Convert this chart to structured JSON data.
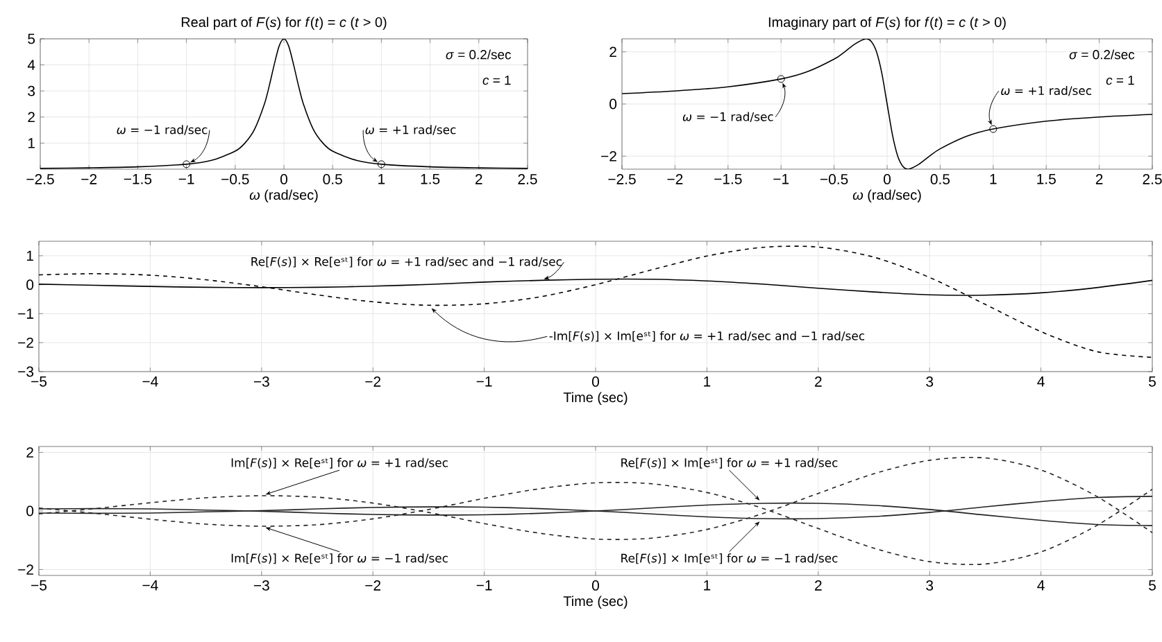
{
  "chart_data": [
    {
      "type": "line",
      "title": "Real part of *F*(*s*) for *f*(*t*) = *c*   (*t* > 0)",
      "xlabel": "*ω* (rad/sec)",
      "xlim": [
        -2.5,
        2.5
      ],
      "ylim": [
        0,
        5
      ],
      "grid": true,
      "xticks": [
        {
          "value": -2.5,
          "label": "−2.5"
        },
        {
          "value": -2,
          "label": "−2"
        },
        {
          "value": -1.5,
          "label": "−1.5"
        },
        {
          "value": -1,
          "label": "−1"
        },
        {
          "value": -0.5,
          "label": "−0.5"
        },
        0,
        0.5,
        1,
        1.5,
        2,
        2.5
      ],
      "yticks": [
        1,
        2,
        3,
        4,
        5
      ],
      "annotations": [
        "*σ* = 0.2/sec",
        "*c* = 1",
        {
          "text": "*ω* = −1 rad/sec",
          "x": -1,
          "y": 0.19
        },
        {
          "text": "*ω* = +1 rad/sec",
          "x": 1,
          "y": 0.19
        }
      ],
      "series": [
        {
          "color": "#000000",
          "x": [
            -2.5,
            -2,
            -1.5,
            -1,
            -0.75,
            -0.5,
            -0.4,
            -0.3,
            -0.2,
            -0.15,
            -0.1,
            -0.05,
            0,
            0.05,
            0.1,
            0.15,
            0.2,
            0.3,
            0.4,
            0.5,
            0.75,
            1,
            1.5,
            2,
            2.5
          ],
          "values": [
            0.03,
            0.05,
            0.09,
            0.19,
            0.33,
            0.69,
            1,
            1.54,
            2.5,
            3.2,
            4,
            4.71,
            5,
            4.71,
            4,
            3.2,
            2.5,
            1.54,
            1,
            0.69,
            0.33,
            0.19,
            0.09,
            0.05,
            0.03
          ]
        },
        {
          "type": "scatter",
          "marker": "circle",
          "color": "#000000",
          "x": [
            -1,
            1
          ],
          "values": [
            0.19,
            0.19
          ]
        }
      ]
    },
    {
      "type": "line",
      "title": "Imaginary part of *F*(*s*) for *f*(*t*) = *c*   (*t* > 0)",
      "xlabel": "*ω* (rad/sec)",
      "xlim": [
        -2.5,
        2.5
      ],
      "ylim": [
        -2.5,
        2.5
      ],
      "grid": true,
      "xticks": [
        {
          "value": -2.5,
          "label": "−2.5"
        },
        {
          "value": -2,
          "label": "−2"
        },
        {
          "value": -1.5,
          "label": "−1.5"
        },
        {
          "value": -1,
          "label": "−1"
        },
        {
          "value": -0.5,
          "label": "−0.5"
        },
        0,
        0.5,
        1,
        1.5,
        2,
        2.5
      ],
      "yticks": [
        {
          "value": -2,
          "label": "−2"
        },
        0,
        2
      ],
      "annotations": [
        "*σ* = 0.2/sec",
        "*c* = 1",
        {
          "text": "*ω* = −1 rad/sec",
          "x": -1,
          "y": 0.96
        },
        {
          "text": "*ω* = +1 rad/sec",
          "x": 1,
          "y": -0.96
        }
      ],
      "series": [
        {
          "color": "#000000",
          "x": [
            -2.5,
            -2,
            -1.5,
            -1,
            -0.75,
            -0.5,
            -0.4,
            -0.3,
            -0.2,
            -0.15,
            -0.1,
            -0.05,
            0,
            0.05,
            0.1,
            0.15,
            0.2,
            0.3,
            0.4,
            0.5,
            0.75,
            1,
            1.5,
            2,
            2.5
          ],
          "values": [
            0.4,
            0.5,
            0.66,
            0.96,
            1.24,
            1.72,
            2,
            2.31,
            2.5,
            2.4,
            2,
            1.18,
            0,
            -1.18,
            -2,
            -2.4,
            -2.5,
            -2.31,
            -2,
            -1.72,
            -1.24,
            -0.96,
            -0.66,
            -0.5,
            -0.4
          ]
        },
        {
          "type": "scatter",
          "marker": "circle",
          "color": "#000000",
          "x": [
            -1,
            1
          ],
          "values": [
            0.96,
            -0.96
          ]
        }
      ]
    },
    {
      "type": "line",
      "xlabel": "Time (sec)",
      "xlim": [
        -5,
        5
      ],
      "ylim": [
        -3,
        1.5
      ],
      "grid": true,
      "xticks": [
        {
          "value": -5,
          "label": "−5"
        },
        {
          "value": -4,
          "label": "−4"
        },
        {
          "value": -3,
          "label": "−3"
        },
        {
          "value": -2,
          "label": "−2"
        },
        {
          "value": -1,
          "label": "−1"
        },
        0,
        1,
        2,
        3,
        4,
        5
      ],
      "yticks": [
        {
          "value": -3,
          "label": "−3"
        },
        {
          "value": -2,
          "label": "−2"
        },
        {
          "value": -1,
          "label": "−1"
        },
        0,
        1
      ],
      "annotations": [
        {
          "text": "Re[*F*(*s*)] × Re[eˢᵗ] for *ω* = +1 rad/sec and −1 rad/sec",
          "x": -0.5,
          "y": 0.15
        },
        {
          "text": "-Im[*F*(*s*)] × Im[eˢᵗ] for *ω* = +1 rad/sec and −1 rad/sec",
          "x": -1.5,
          "y": -0.71
        }
      ],
      "x": [
        -5,
        -4.5,
        -4,
        -3.5,
        -3,
        -2.5,
        -2,
        -1.5,
        -1,
        -0.5,
        0,
        0.5,
        1,
        1.5,
        2,
        2.5,
        3,
        3.5,
        4,
        4.5,
        5
      ],
      "series": [
        {
          "color": "#000000",
          "line_style": "solid",
          "values": [
            0.02,
            -0.02,
            -0.06,
            -0.09,
            -0.1,
            -0.09,
            -0.05,
            0.01,
            0.09,
            0.15,
            0.19,
            0.19,
            0.13,
            0.02,
            -0.12,
            -0.25,
            -0.35,
            -0.36,
            -0.28,
            -0.1,
            0.15
          ]
        },
        {
          "color": "#000000",
          "line_style": "dashed",
          "values": [
            0.34,
            0.38,
            0.33,
            0.17,
            -0.07,
            -0.35,
            -0.59,
            -0.71,
            -0.66,
            -0.42,
            0,
            0.51,
            0.99,
            1.29,
            1.3,
            0.95,
            0.25,
            -0.68,
            -1.62,
            -2.31,
            -2.51
          ]
        }
      ]
    },
    {
      "type": "line",
      "xlabel": "Time (sec)",
      "xlim": [
        -5,
        5
      ],
      "ylim": [
        -2.2,
        2.2
      ],
      "grid": true,
      "xticks": [
        {
          "value": -5,
          "label": "−5"
        },
        {
          "value": -4,
          "label": "−4"
        },
        {
          "value": -3,
          "label": "−3"
        },
        {
          "value": -2,
          "label": "−2"
        },
        {
          "value": -1,
          "label": "−1"
        },
        0,
        1,
        2,
        3,
        4,
        5
      ],
      "yticks": [
        {
          "value": -2,
          "label": "−2"
        },
        0,
        2
      ],
      "annotations": [
        {
          "text": "Im[*F*(*s*)] × Re[eˢᵗ] for *ω* = +1 rad/sec",
          "x": -3,
          "y": 0.52
        },
        {
          "text": "Im[*F*(*s*)] × Re[eˢᵗ] for *ω* = −1 rad/sec",
          "x": -3,
          "y": -0.52
        },
        {
          "text": "Re[*F*(*s*)] × Im[eˢᵗ] for *ω* = +1 rad/sec",
          "x": 1.5,
          "y": 0.26
        },
        {
          "text": "Re[*F*(*s*)] × Im[eˢᵗ] for *ω* = −1 rad/sec",
          "x": 1.5,
          "y": -0.26
        }
      ],
      "x": [
        -5,
        -4.5,
        -4,
        -3.5,
        -3,
        -2.5,
        -2,
        -1.5,
        -1,
        -0.5,
        0,
        0.5,
        1,
        1.5,
        2,
        2.5,
        3,
        3.5,
        4,
        4.5,
        5
      ],
      "series": [
        {
          "color": "#222222",
          "line_style": "dashed",
          "values": [
            -0.1,
            0.08,
            0.28,
            0.45,
            0.52,
            0.47,
            0.27,
            -0.05,
            -0.43,
            -0.76,
            -0.96,
            -0.93,
            -0.63,
            -0.09,
            0.6,
            1.27,
            1.73,
            1.81,
            1.4,
            0.5,
            -0.74
          ]
        },
        {
          "color": "#222222",
          "line_style": "dashed",
          "values": [
            0.1,
            -0.08,
            -0.28,
            -0.45,
            -0.52,
            -0.47,
            -0.27,
            0.05,
            0.43,
            0.76,
            0.96,
            0.93,
            0.63,
            0.09,
            -0.6,
            -1.27,
            -1.73,
            -1.81,
            -1.4,
            -0.5,
            0.74
          ]
        },
        {
          "color": "#222222",
          "line_style": "solid",
          "values": [
            0.07,
            0.08,
            0.07,
            0.03,
            -0.01,
            -0.07,
            -0.12,
            -0.14,
            -0.13,
            -0.08,
            0,
            0.1,
            0.2,
            0.26,
            0.26,
            0.19,
            0.05,
            -0.14,
            -0.32,
            -0.46,
            -0.5
          ]
        },
        {
          "color": "#222222",
          "line_style": "solid",
          "values": [
            -0.07,
            -0.08,
            -0.07,
            -0.03,
            0.01,
            0.07,
            0.12,
            0.14,
            0.13,
            0.08,
            0,
            -0.1,
            -0.2,
            -0.26,
            -0.26,
            -0.19,
            -0.05,
            0.14,
            0.32,
            0.46,
            0.5
          ]
        }
      ]
    }
  ]
}
